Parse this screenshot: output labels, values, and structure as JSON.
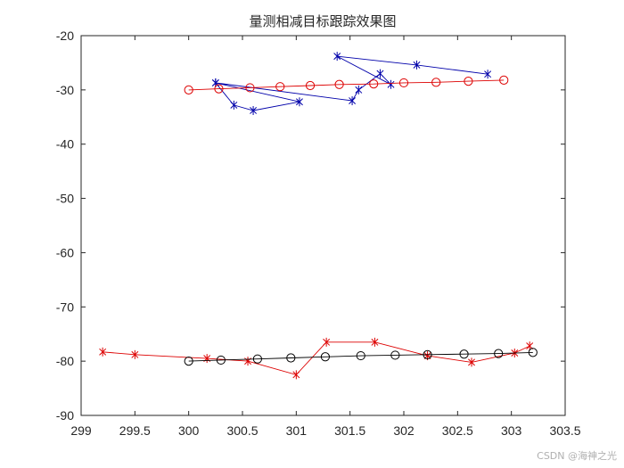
{
  "chart_data": {
    "type": "line",
    "title": "量测相减目标跟踪效果图",
    "xlabel": "",
    "ylabel": "",
    "xlim": [
      299,
      303.5
    ],
    "ylim": [
      -90,
      -20
    ],
    "xticks": [
      299,
      299.5,
      300,
      300.5,
      301,
      301.5,
      302,
      302.5,
      303,
      303.5
    ],
    "yticks": [
      -20,
      -30,
      -40,
      -50,
      -60,
      -70,
      -80,
      -90
    ],
    "xtick_labels": [
      "299",
      "299.5",
      "300",
      "300.5",
      "301",
      "301.5",
      "302",
      "302.5",
      "303",
      "303.5"
    ],
    "ytick_labels": [
      "-20",
      "-30",
      "-40",
      "-50",
      "-60",
      "-70",
      "-80",
      "-90"
    ],
    "grid": false,
    "series": [
      {
        "marker": "star",
        "color": "#0000aa",
        "points": [
          [
            300.25,
            -28.7
          ],
          [
            300.42,
            -32.8
          ],
          [
            300.6,
            -33.8
          ],
          [
            301.03,
            -32.2
          ],
          [
            300.25,
            -28.7
          ],
          [
            301.52,
            -32.0
          ],
          [
            301.58,
            -30.0
          ],
          [
            301.78,
            -27.0
          ],
          [
            301.88,
            -29.0
          ],
          [
            301.38,
            -23.8
          ],
          [
            302.12,
            -25.4
          ],
          [
            302.78,
            -27.1
          ]
        ]
      },
      {
        "marker": "circle",
        "color": "#dd0000",
        "points": [
          [
            300.0,
            -30.0
          ],
          [
            300.28,
            -29.8
          ],
          [
            300.57,
            -29.6
          ],
          [
            300.85,
            -29.4
          ],
          [
            301.13,
            -29.2
          ],
          [
            301.4,
            -29.0
          ],
          [
            301.72,
            -28.9
          ],
          [
            302.0,
            -28.7
          ],
          [
            302.3,
            -28.6
          ],
          [
            302.6,
            -28.4
          ],
          [
            302.93,
            -28.2
          ]
        ]
      },
      {
        "marker": "star",
        "color": "#dd0000",
        "points": [
          [
            299.2,
            -78.3
          ],
          [
            299.5,
            -78.8
          ],
          [
            300.17,
            -79.5
          ],
          [
            300.55,
            -80.0
          ],
          [
            301.0,
            -82.5
          ],
          [
            301.28,
            -76.5
          ],
          [
            301.73,
            -76.5
          ],
          [
            302.22,
            -79.0
          ],
          [
            302.63,
            -80.2
          ],
          [
            303.03,
            -78.5
          ],
          [
            303.17,
            -77.2
          ]
        ]
      },
      {
        "marker": "circle",
        "color": "#000000",
        "points": [
          [
            300.0,
            -80.0
          ],
          [
            300.3,
            -79.8
          ],
          [
            300.64,
            -79.6
          ],
          [
            300.95,
            -79.4
          ],
          [
            301.27,
            -79.2
          ],
          [
            301.6,
            -79.0
          ],
          [
            301.92,
            -78.9
          ],
          [
            302.22,
            -78.8
          ],
          [
            302.56,
            -78.7
          ],
          [
            302.88,
            -78.6
          ],
          [
            303.2,
            -78.4
          ]
        ]
      }
    ]
  },
  "watermark": "CSDN @海神之光"
}
